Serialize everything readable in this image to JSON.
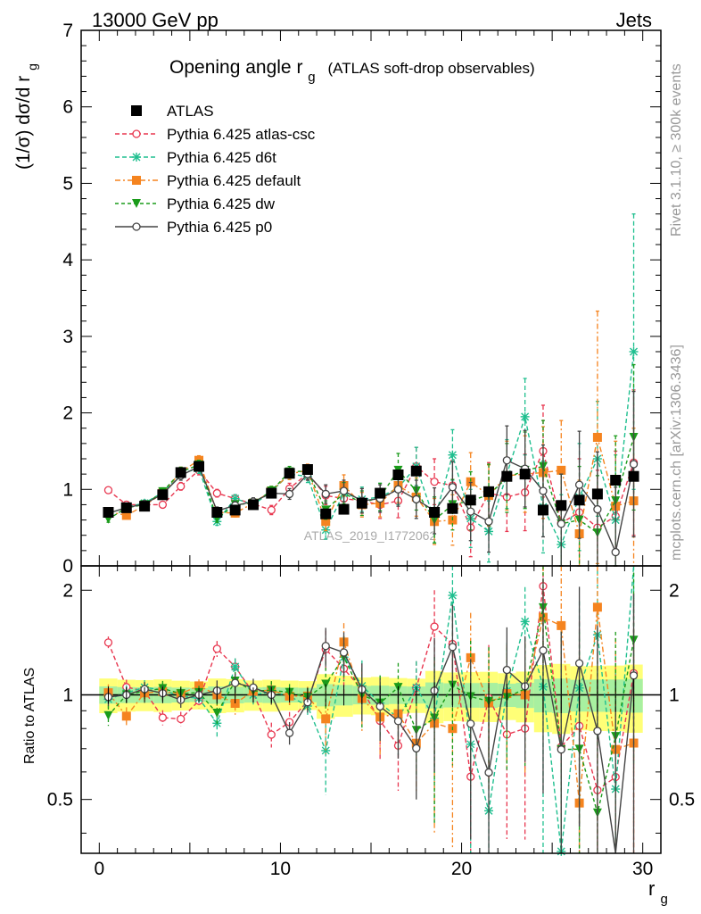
{
  "header": {
    "left": "13000 GeV pp",
    "right": "Jets"
  },
  "side_text": {
    "rivet": "Rivet 3.1.10, ≥ 300k events",
    "mcplots": "mcplots.cern.ch [arXiv:1306.3436]"
  },
  "chart_data": {
    "type": "scatter",
    "title": "Opening angle r",
    "title_sub": "g",
    "title_extra": "(ATLAS soft-drop observables)",
    "ylabel_main": "(1/σ) dσ/d r",
    "ylabel_main_sub": "g",
    "ylabel_ratio": "Ratio to ATLAS",
    "xlabel": "r",
    "xlabel_sub": "g",
    "watermark": "ATLAS_2019_I1772062",
    "xlim": [
      -1,
      31
    ],
    "ylim_main": [
      0,
      7
    ],
    "ylim_ratio": [
      0.35,
      2.35
    ],
    "x_ticks": [
      "0",
      "10",
      "20",
      "30"
    ],
    "y_ticks_main": [
      "0",
      "1",
      "2",
      "3",
      "4",
      "5",
      "6",
      "7"
    ],
    "y_ticks_ratio": [
      "0.5",
      "1",
      "2"
    ],
    "x": [
      0.5,
      1.5,
      2.5,
      3.5,
      4.5,
      5.5,
      6.5,
      7.5,
      8.5,
      9.5,
      10.5,
      11.5,
      12.5,
      13.5,
      14.5,
      15.5,
      16.5,
      17.5,
      18.5,
      19.5,
      20.5,
      21.5,
      22.5,
      23.5,
      24.5,
      25.5,
      26.5,
      27.5,
      28.5,
      29.5
    ],
    "data": {
      "name": "ATLAS",
      "values": [
        0.7,
        0.76,
        0.78,
        0.93,
        1.22,
        1.3,
        0.7,
        0.73,
        0.8,
        0.95,
        1.21,
        1.26,
        0.68,
        0.74,
        0.82,
        0.95,
        1.19,
        1.24,
        0.7,
        0.75,
        0.86,
        0.97,
        1.17,
        1.2,
        0.73,
        0.79,
        0.86,
        0.94,
        1.12,
        1.17
      ],
      "errors": [
        0.04,
        0.04,
        0.04,
        0.05,
        0.06,
        0.06,
        0.04,
        0.04,
        0.04,
        0.05,
        0.06,
        0.06,
        0.05,
        0.05,
        0.05,
        0.06,
        0.07,
        0.07,
        0.06,
        0.06,
        0.07,
        0.08,
        0.09,
        0.1,
        0.08,
        0.09,
        0.09,
        0.1,
        0.12,
        0.13
      ]
    },
    "series": [
      {
        "name": "Pythia 6.425 atlas-csc",
        "color": "#e8364f",
        "marker": "open-circle",
        "dash": "5,3",
        "values": [
          0.99,
          0.8,
          0.8,
          0.8,
          1.04,
          1.25,
          0.95,
          0.88,
          0.81,
          0.73,
          1.01,
          1.21,
          0.92,
          0.88,
          0.85,
          0.8,
          0.85,
          1.3,
          1.1,
          1.05,
          0.5,
          0.95,
          0.9,
          0.96,
          1.5,
          0.56,
          0.7,
          0.5,
          0.65,
          1.35
        ],
        "errors": [
          0.04,
          0.04,
          0.04,
          0.04,
          0.05,
          0.06,
          0.05,
          0.05,
          0.05,
          0.06,
          0.07,
          0.08,
          0.12,
          0.14,
          0.16,
          0.18,
          0.22,
          0.25,
          0.3,
          0.33,
          0.38,
          0.4,
          0.45,
          0.5,
          0.6,
          0.65,
          0.7,
          0.75,
          0.85,
          0.95
        ]
      },
      {
        "name": "Pythia 6.425 d6t",
        "color": "#1fbf8f",
        "marker": "star",
        "dash": "5,3",
        "values": [
          0.68,
          0.77,
          0.82,
          0.96,
          1.21,
          1.27,
          0.58,
          0.88,
          0.8,
          0.97,
          1.2,
          1.17,
          0.47,
          0.95,
          0.87,
          0.9,
          1.02,
          1.3,
          0.6,
          1.45,
          0.62,
          0.45,
          1.2,
          1.95,
          0.77,
          0.28,
          0.9,
          1.4,
          0.6,
          2.8
        ],
        "errors": [
          0.04,
          0.04,
          0.04,
          0.05,
          0.06,
          0.06,
          0.05,
          0.05,
          0.05,
          0.06,
          0.07,
          0.08,
          0.12,
          0.14,
          0.16,
          0.18,
          0.22,
          0.25,
          0.3,
          0.33,
          0.38,
          0.4,
          0.45,
          0.5,
          0.6,
          0.65,
          0.7,
          0.75,
          0.85,
          1.8
        ]
      },
      {
        "name": "Pythia 6.425 default",
        "color": "#f5841f",
        "marker": "filled-square",
        "dash": "6,3,2,3",
        "values": [
          0.71,
          0.66,
          0.79,
          0.95,
          1.23,
          1.38,
          0.7,
          0.69,
          0.82,
          0.98,
          1.2,
          1.25,
          0.58,
          1.05,
          0.8,
          0.82,
          1.05,
          0.9,
          0.58,
          0.6,
          1.1,
          0.92,
          1.18,
          1.2,
          1.22,
          1.25,
          0.42,
          1.68,
          0.78,
          0.85
        ],
        "errors": [
          0.04,
          0.04,
          0.04,
          0.05,
          0.06,
          0.06,
          0.05,
          0.05,
          0.05,
          0.06,
          0.07,
          0.08,
          0.12,
          0.14,
          0.16,
          0.18,
          0.22,
          0.25,
          0.3,
          0.33,
          0.38,
          0.4,
          0.45,
          0.5,
          0.6,
          0.65,
          0.7,
          1.65,
          0.85,
          0.95
        ]
      },
      {
        "name": "Pythia 6.425 dw",
        "color": "#1a9b1a",
        "marker": "filled-triangle-down",
        "dash": "4,3",
        "values": [
          0.61,
          0.76,
          0.8,
          0.97,
          1.23,
          1.32,
          0.62,
          0.8,
          0.82,
          0.98,
          1.23,
          1.24,
          0.73,
          0.95,
          0.82,
          0.9,
          1.25,
          0.98,
          0.6,
          0.8,
          0.85,
          0.93,
          1.15,
          1.25,
          1.3,
          0.55,
          0.6,
          0.43,
          0.85,
          1.68
        ],
        "errors": [
          0.04,
          0.04,
          0.04,
          0.05,
          0.06,
          0.06,
          0.05,
          0.05,
          0.05,
          0.06,
          0.07,
          0.08,
          0.12,
          0.14,
          0.16,
          0.18,
          0.22,
          0.25,
          0.3,
          0.33,
          0.38,
          0.4,
          0.45,
          0.5,
          0.6,
          0.65,
          0.7,
          0.75,
          0.85,
          0.95
        ]
      },
      {
        "name": "Pythia 6.425 p0",
        "color": "#444444",
        "marker": "open-circle",
        "dash": "",
        "values": [
          0.69,
          0.76,
          0.81,
          0.94,
          1.18,
          1.3,
          0.72,
          0.79,
          0.84,
          0.95,
          0.94,
          1.2,
          0.94,
          0.98,
          0.85,
          0.88,
          1.0,
          0.87,
          0.72,
          1.03,
          0.71,
          0.58,
          1.38,
          1.27,
          0.98,
          0.55,
          1.06,
          0.74,
          0.18,
          1.33
        ],
        "errors": [
          0.04,
          0.04,
          0.04,
          0.05,
          0.06,
          0.06,
          0.05,
          0.05,
          0.05,
          0.06,
          0.07,
          0.08,
          0.12,
          0.14,
          0.16,
          0.18,
          0.22,
          0.25,
          0.3,
          0.33,
          0.38,
          0.4,
          0.45,
          0.5,
          0.6,
          0.65,
          0.7,
          0.75,
          0.85,
          0.95
        ]
      }
    ]
  }
}
